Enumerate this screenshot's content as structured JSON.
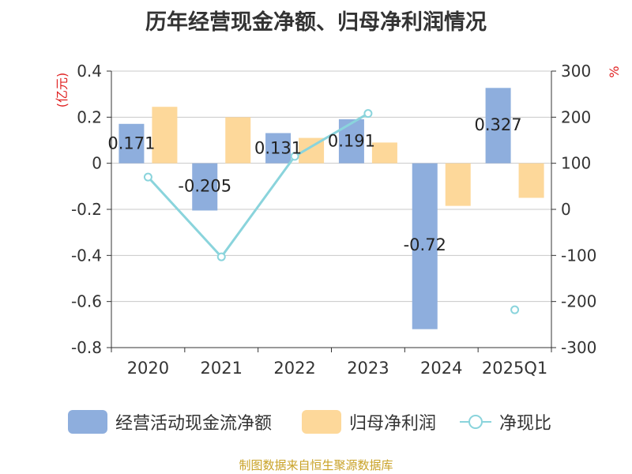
{
  "chart_data": {
    "type": "bar",
    "title": "历年经营现金净额、归母净利润情况",
    "categories": [
      "2020",
      "2021",
      "2022",
      "2023",
      "2024",
      "2025Q1"
    ],
    "left_axis": {
      "unit_label": "(亿元)",
      "ylim": [
        -0.8,
        0.4
      ],
      "ticks": [
        0.4,
        0.2,
        0,
        -0.2,
        -0.4,
        -0.6,
        -0.8
      ],
      "tick_labels": [
        "0.4",
        "0.2",
        "0",
        "-0.2",
        "-0.4",
        "-0.6",
        "-0.8"
      ]
    },
    "right_axis": {
      "unit_label": "%",
      "ylim": [
        -300,
        300
      ],
      "ticks": [
        300,
        200,
        100,
        0,
        -100,
        -200,
        -300
      ],
      "tick_labels": [
        "300",
        "200",
        "100",
        "0",
        "-100",
        "-200",
        "-300"
      ]
    },
    "series": [
      {
        "name": "经营活动现金流净额",
        "kind": "bar",
        "axis": "left",
        "color": "#8eaedd",
        "values": [
          0.171,
          -0.205,
          0.131,
          0.191,
          -0.72,
          0.327
        ],
        "labels": [
          "0.171",
          "-0.205",
          "0.131",
          "0.191",
          "-0.72",
          "0.327"
        ]
      },
      {
        "name": "归母净利润",
        "kind": "bar",
        "axis": "left",
        "color": "#fdd89a",
        "values": [
          0.245,
          0.2,
          0.11,
          0.09,
          -0.185,
          -0.15
        ]
      },
      {
        "name": "净现比",
        "kind": "line",
        "axis": "right",
        "color": "#8ad4dc",
        "values": [
          70,
          -103,
          115,
          208,
          null,
          -218
        ]
      }
    ],
    "legend_position": "bottom",
    "grid": true
  },
  "legend": [
    {
      "label": "经营活动现金流净额",
      "color": "#8eaedd"
    },
    {
      "label": "归母净利润",
      "color": "#fdd89a"
    },
    {
      "label": "净现比",
      "color": "#8ad4dc"
    }
  ],
  "source": "制图数据来自恒生聚源数据库"
}
